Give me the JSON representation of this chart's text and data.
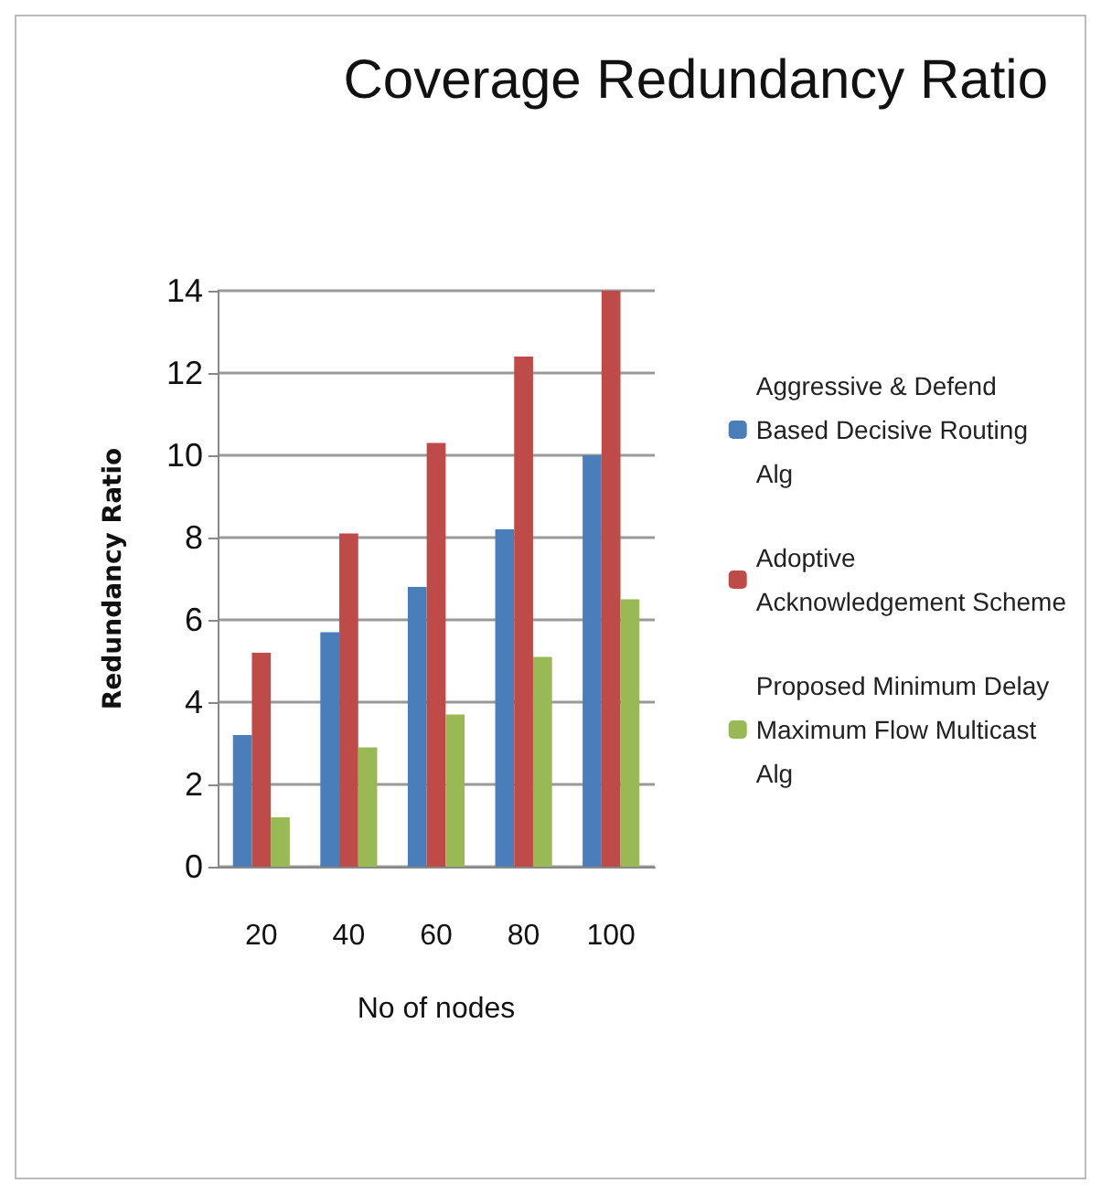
{
  "chart_data": {
    "type": "bar",
    "title": "Coverage Redundancy Ratio",
    "xlabel": "No of nodes",
    "ylabel": "Redundancy Ratio",
    "categories": [
      "20",
      "40",
      "60",
      "80",
      "100"
    ],
    "series": [
      {
        "name": "Aggressive & Defend Based Decisive Routing Alg",
        "color": "#4a7ebb",
        "values": [
          3.2,
          5.7,
          6.8,
          8.2,
          10
        ]
      },
      {
        "name": "Adoptive Acknowledgement Scheme",
        "color": "#be4b48",
        "values": [
          5.2,
          8.1,
          10.3,
          12.4,
          14
        ]
      },
      {
        "name": "Proposed Minimum Delay Maximum Flow Multicast Alg",
        "color": "#98b954",
        "values": [
          1.2,
          2.9,
          3.7,
          5.1,
          6.5
        ]
      }
    ],
    "ylim": [
      0,
      14
    ],
    "yticks": [
      0,
      2,
      4,
      6,
      8,
      10,
      12,
      14
    ],
    "grid": "y",
    "legend": "right"
  }
}
